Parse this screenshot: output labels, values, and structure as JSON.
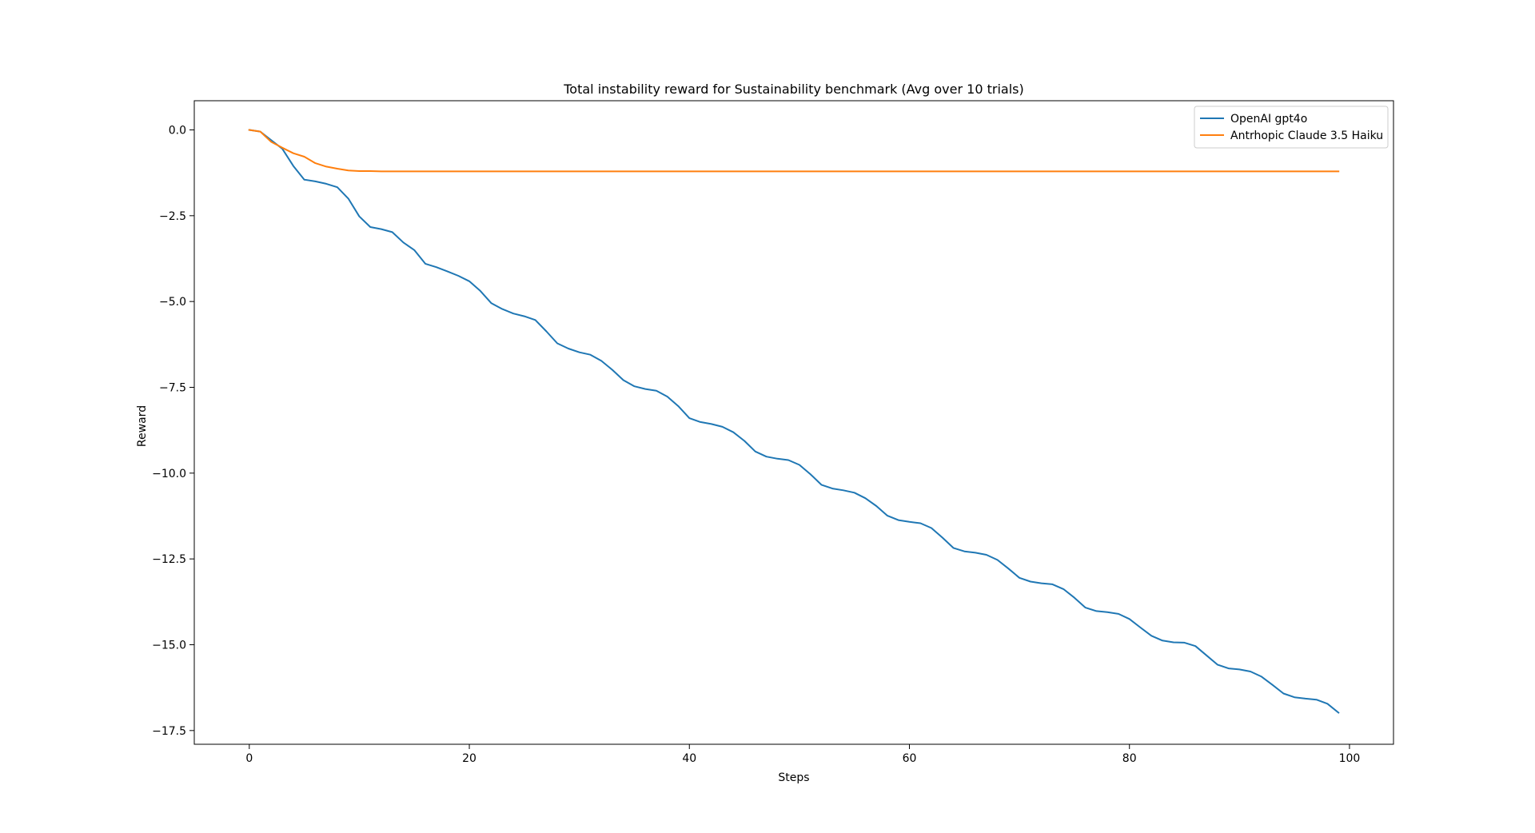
{
  "chart_data": {
    "type": "line",
    "title": "Total instability reward for Sustainability benchmark (Avg over 10 trials)",
    "xlabel": "Steps",
    "ylabel": "Reward",
    "xlim": [
      -5,
      104
    ],
    "ylim": [
      -17.9,
      0.85
    ],
    "xticks": [
      0,
      20,
      40,
      60,
      80,
      100
    ],
    "xtick_labels": [
      "0",
      "20",
      "40",
      "60",
      "80",
      "100"
    ],
    "yticks": [
      0.0,
      -2.5,
      -5.0,
      -7.5,
      -10.0,
      -12.5,
      -15.0,
      -17.5
    ],
    "ytick_labels": [
      "0.0",
      "−2.5",
      "−5.0",
      "−7.5",
      "−10.0",
      "−12.5",
      "−15.0",
      "−17.5"
    ],
    "grid": false,
    "legend": "top-right",
    "series": [
      {
        "name": "OpenAI gpt4o",
        "color": "#1f77b4",
        "x": [
          0,
          1,
          2,
          3,
          4,
          5,
          6,
          7,
          8,
          9,
          10,
          11,
          12,
          13,
          14,
          15,
          16,
          17,
          18,
          19,
          20,
          21,
          22,
          23,
          24,
          25,
          26,
          27,
          28,
          29,
          30,
          31,
          32,
          33,
          34,
          35,
          36,
          37,
          38,
          39,
          40,
          41,
          42,
          43,
          44,
          45,
          46,
          47,
          48,
          49,
          50,
          51,
          52,
          53,
          54,
          55,
          56,
          57,
          58,
          59,
          60,
          61,
          62,
          63,
          64,
          65,
          66,
          67,
          68,
          69,
          70,
          71,
          72,
          73,
          74,
          75,
          76,
          77,
          78,
          79,
          80,
          81,
          82,
          83,
          84,
          85,
          86,
          87,
          88,
          89,
          90,
          91,
          92,
          93,
          94,
          95,
          96,
          97,
          98,
          99
        ],
        "values": [
          0.0,
          -0.05,
          -0.3,
          -0.55,
          -1.05,
          -1.45,
          -1.5,
          -1.57,
          -1.67,
          -2.0,
          -2.52,
          -2.83,
          -2.89,
          -2.98,
          -3.28,
          -3.5,
          -3.9,
          -4.0,
          -4.12,
          -4.25,
          -4.41,
          -4.69,
          -5.05,
          -5.22,
          -5.35,
          -5.43,
          -5.54,
          -5.87,
          -6.22,
          -6.37,
          -6.48,
          -6.55,
          -6.73,
          -6.99,
          -7.29,
          -7.47,
          -7.55,
          -7.6,
          -7.77,
          -8.05,
          -8.4,
          -8.51,
          -8.57,
          -8.65,
          -8.81,
          -9.06,
          -9.37,
          -9.52,
          -9.58,
          -9.62,
          -9.76,
          -10.03,
          -10.34,
          -10.45,
          -10.5,
          -10.57,
          -10.73,
          -10.96,
          -11.24,
          -11.37,
          -11.42,
          -11.46,
          -11.6,
          -11.88,
          -12.18,
          -12.28,
          -12.32,
          -12.38,
          -12.53,
          -12.78,
          -13.05,
          -13.16,
          -13.21,
          -13.24,
          -13.38,
          -13.63,
          -13.92,
          -14.02,
          -14.05,
          -14.1,
          -14.25,
          -14.5,
          -14.74,
          -14.88,
          -14.93,
          -14.94,
          -15.04,
          -15.31,
          -15.58,
          -15.69,
          -15.72,
          -15.78,
          -15.93,
          -16.17,
          -16.42,
          -16.53,
          -16.57,
          -16.6,
          -16.72,
          -16.98
        ]
      },
      {
        "name": "Antrhopic Claude 3.5 Haiku",
        "color": "#ff7f0e",
        "x": [
          0,
          1,
          2,
          3,
          4,
          5,
          6,
          7,
          8,
          9,
          10,
          11,
          12,
          13,
          14,
          15,
          16,
          17,
          18,
          19,
          20,
          21,
          22,
          23,
          24,
          25,
          26,
          27,
          28,
          29,
          30,
          31,
          32,
          33,
          34,
          35,
          36,
          37,
          38,
          39,
          40,
          41,
          42,
          43,
          44,
          45,
          46,
          47,
          48,
          49,
          50,
          51,
          52,
          53,
          54,
          55,
          56,
          57,
          58,
          59,
          60,
          61,
          62,
          63,
          64,
          65,
          66,
          67,
          68,
          69,
          70,
          71,
          72,
          73,
          74,
          75,
          76,
          77,
          78,
          79,
          80,
          81,
          82,
          83,
          84,
          85,
          86,
          87,
          88,
          89,
          90,
          91,
          92,
          93,
          94,
          95,
          96,
          97,
          98,
          99
        ],
        "values": [
          0.0,
          -0.05,
          -0.35,
          -0.52,
          -0.68,
          -0.78,
          -0.97,
          -1.07,
          -1.13,
          -1.18,
          -1.2,
          -1.2,
          -1.21,
          -1.21,
          -1.21,
          -1.21,
          -1.21,
          -1.21,
          -1.21,
          -1.21,
          -1.21,
          -1.21,
          -1.21,
          -1.21,
          -1.21,
          -1.21,
          -1.21,
          -1.21,
          -1.21,
          -1.21,
          -1.21,
          -1.21,
          -1.21,
          -1.21,
          -1.21,
          -1.21,
          -1.21,
          -1.21,
          -1.21,
          -1.21,
          -1.21,
          -1.21,
          -1.21,
          -1.21,
          -1.21,
          -1.21,
          -1.21,
          -1.21,
          -1.21,
          -1.21,
          -1.21,
          -1.21,
          -1.21,
          -1.21,
          -1.21,
          -1.21,
          -1.21,
          -1.21,
          -1.21,
          -1.21,
          -1.21,
          -1.21,
          -1.21,
          -1.21,
          -1.21,
          -1.21,
          -1.21,
          -1.21,
          -1.21,
          -1.21,
          -1.21,
          -1.21,
          -1.21,
          -1.21,
          -1.21,
          -1.21,
          -1.21,
          -1.21,
          -1.21,
          -1.21,
          -1.21,
          -1.21,
          -1.21,
          -1.21,
          -1.21,
          -1.21,
          -1.21,
          -1.21,
          -1.21,
          -1.21,
          -1.21,
          -1.21,
          -1.21,
          -1.21,
          -1.21,
          -1.21,
          -1.21,
          -1.21,
          -1.21,
          -1.21
        ]
      }
    ]
  }
}
